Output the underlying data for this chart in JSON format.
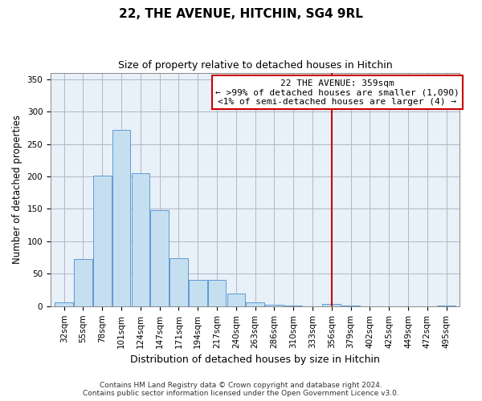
{
  "title": "22, THE AVENUE, HITCHIN, SG4 9RL",
  "subtitle": "Size of property relative to detached houses in Hitchin",
  "xlabel": "Distribution of detached houses by size in Hitchin",
  "ylabel": "Number of detached properties",
  "bin_labels": [
    "32sqm",
    "55sqm",
    "78sqm",
    "101sqm",
    "124sqm",
    "147sqm",
    "171sqm",
    "194sqm",
    "217sqm",
    "240sqm",
    "263sqm",
    "286sqm",
    "310sqm",
    "333sqm",
    "356sqm",
    "379sqm",
    "402sqm",
    "425sqm",
    "449sqm",
    "472sqm",
    "495sqm"
  ],
  "bar_heights": [
    6,
    73,
    201,
    272,
    205,
    148,
    74,
    41,
    41,
    20,
    6,
    2,
    1,
    0,
    3,
    1,
    0,
    0,
    0,
    0,
    1
  ],
  "bar_color": "#c6dff0",
  "bar_edge_color": "#5b9bd5",
  "vline_x_index": 14,
  "vline_color": "#cc0000",
  "ylim": [
    0,
    360
  ],
  "yticks": [
    0,
    50,
    100,
    150,
    200,
    250,
    300,
    350
  ],
  "annotation_title": "22 THE AVENUE: 359sqm",
  "annotation_line1": "← >99% of detached houses are smaller (1,090)",
  "annotation_line2": "<1% of semi-detached houses are larger (4) →",
  "annotation_box_facecolor": "#ffffff",
  "annotation_border_color": "#cc0000",
  "plot_bg_color": "#e8f0f8",
  "footer_line1": "Contains HM Land Registry data © Crown copyright and database right 2024.",
  "footer_line2": "Contains public sector information licensed under the Open Government Licence v3.0.",
  "background_color": "#ffffff",
  "grid_color": "#b0b8c8",
  "title_fontsize": 11,
  "subtitle_fontsize": 9,
  "xlabel_fontsize": 9,
  "ylabel_fontsize": 8.5,
  "tick_fontsize": 7.5,
  "annotation_fontsize": 8,
  "footer_fontsize": 6.5
}
